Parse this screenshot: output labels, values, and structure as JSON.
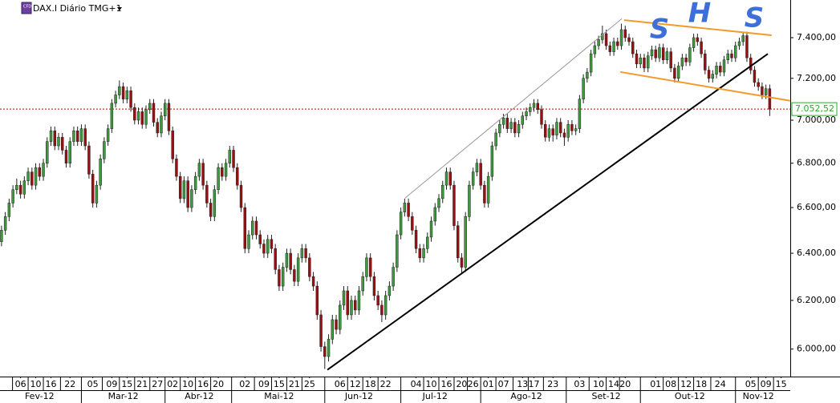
{
  "chart_data": {
    "type": "candlestick",
    "title": "DAX.I Diário TMG+1",
    "log_scale": true,
    "grid": false,
    "up_color": "#3c9c3c",
    "down_color": "#9a1010",
    "ylim": [
      5890,
      7590
    ],
    "yticks": [
      {
        "value": 6000,
        "label": "6.000,00"
      },
      {
        "value": 6200,
        "label": "6.200,00"
      },
      {
        "value": 6400,
        "label": "6.400,00"
      },
      {
        "value": 6600,
        "label": "6.600,00"
      },
      {
        "value": 6800,
        "label": "6.800,00"
      },
      {
        "value": 7000,
        "label": "7.000,00"
      },
      {
        "value": 7200,
        "label": "7.200,00"
      },
      {
        "value": 7400,
        "label": "7.400,00"
      }
    ],
    "xlim": [
      -0.4,
      207.4
    ],
    "xticks": [
      {
        "value": 5,
        "label": "06"
      },
      {
        "value": 9,
        "label": "10"
      },
      {
        "value": 13,
        "label": "16"
      },
      {
        "value": 18,
        "label": "22"
      },
      {
        "value": 24,
        "label": "05"
      },
      {
        "value": 29,
        "label": "09"
      },
      {
        "value": 33,
        "label": "15"
      },
      {
        "value": 37,
        "label": "21"
      },
      {
        "value": 41,
        "label": "27"
      },
      {
        "value": 45,
        "label": "02"
      },
      {
        "value": 49,
        "label": "10"
      },
      {
        "value": 53,
        "label": "16"
      },
      {
        "value": 57,
        "label": "20"
      },
      {
        "value": 64,
        "label": "02"
      },
      {
        "value": 69,
        "label": "09"
      },
      {
        "value": 73,
        "label": "15"
      },
      {
        "value": 77,
        "label": "21"
      },
      {
        "value": 81,
        "label": "25"
      },
      {
        "value": 89,
        "label": "06"
      },
      {
        "value": 93,
        "label": "12"
      },
      {
        "value": 97,
        "label": "18"
      },
      {
        "value": 101,
        "label": "22"
      },
      {
        "value": 109,
        "label": "04"
      },
      {
        "value": 113,
        "label": "10"
      },
      {
        "value": 117,
        "label": "16"
      },
      {
        "value": 121,
        "label": "20"
      },
      {
        "value": 124,
        "label": "26"
      },
      {
        "value": 128,
        "label": "01"
      },
      {
        "value": 132,
        "label": "07"
      },
      {
        "value": 137,
        "label": "13"
      },
      {
        "value": 140,
        "label": "17"
      },
      {
        "value": 145,
        "label": "23"
      },
      {
        "value": 152,
        "label": "03"
      },
      {
        "value": 157,
        "label": "10"
      },
      {
        "value": 161,
        "label": "14"
      },
      {
        "value": 164,
        "label": "20"
      },
      {
        "value": 172,
        "label": "01"
      },
      {
        "value": 176,
        "label": "08"
      },
      {
        "value": 180,
        "label": "12"
      },
      {
        "value": 184,
        "label": "18"
      },
      {
        "value": 189,
        "label": "24"
      },
      {
        "value": 197,
        "label": "05"
      },
      {
        "value": 201,
        "label": "09"
      },
      {
        "value": 205,
        "label": "15"
      }
    ],
    "month_ticks": [
      {
        "value": 10,
        "label": "Fev-12"
      },
      {
        "value": 32,
        "label": "Mar-12"
      },
      {
        "value": 52,
        "label": "Abr-12"
      },
      {
        "value": 73,
        "label": "Mai-12"
      },
      {
        "value": 94,
        "label": "Jun-12"
      },
      {
        "value": 114,
        "label": "Jul-12"
      },
      {
        "value": 138,
        "label": "Ago-12"
      },
      {
        "value": 159,
        "label": "Set-12"
      },
      {
        "value": 181,
        "label": "Out-12"
      },
      {
        "value": 199,
        "label": "Nov-12"
      }
    ],
    "last_price": {
      "value": 7052.52,
      "label": "7.052,52",
      "color": "#2fa82f",
      "line_color": "#c0392b"
    },
    "trendlines": [
      {
        "from": [
          85.7,
          5917
        ],
        "to": [
          201.5,
          7320
        ],
        "color": "#000000"
      },
      {
        "from": [
          106.1,
          6642
        ],
        "to": [
          163.1,
          7495
        ],
        "color": "#999999"
      },
      {
        "from": [
          163.7,
          7488
        ],
        "to": [
          202.5,
          7412
        ],
        "color": "#f39a2b"
      },
      {
        "from": [
          162.7,
          7231
        ],
        "to": [
          207.4,
          7092
        ],
        "color": "#f39a2b"
      }
    ],
    "annotations": [
      "S",
      "H",
      "S"
    ],
    "ohlc": [
      [
        6450,
        6520,
        6430,
        6500
      ],
      [
        6500,
        6580,
        6480,
        6560
      ],
      [
        6560,
        6640,
        6540,
        6620
      ],
      [
        6620,
        6700,
        6600,
        6680
      ],
      [
        6680,
        6730,
        6660,
        6700
      ],
      [
        6700,
        6720,
        6640,
        6660
      ],
      [
        6660,
        6740,
        6640,
        6720
      ],
      [
        6720,
        6780,
        6700,
        6760
      ],
      [
        6760,
        6780,
        6680,
        6700
      ],
      [
        6700,
        6800,
        6680,
        6780
      ],
      [
        6780,
        6800,
        6720,
        6740
      ],
      [
        6740,
        6820,
        6720,
        6800
      ],
      [
        6800,
        6920,
        6780,
        6900
      ],
      [
        6900,
        6970,
        6880,
        6950
      ],
      [
        6950,
        6970,
        6860,
        6880
      ],
      [
        6880,
        6940,
        6860,
        6920
      ],
      [
        6920,
        6940,
        6840,
        6860
      ],
      [
        6860,
        6880,
        6780,
        6800
      ],
      [
        6800,
        6920,
        6780,
        6900
      ],
      [
        6900,
        6970,
        6880,
        6950
      ],
      [
        6950,
        6970,
        6880,
        6900
      ],
      [
        6900,
        6980,
        6880,
        6960
      ],
      [
        6960,
        6980,
        6860,
        6880
      ],
      [
        6880,
        6900,
        6730,
        6750
      ],
      [
        6750,
        6770,
        6600,
        6620
      ],
      [
        6620,
        6720,
        6600,
        6700
      ],
      [
        6700,
        6840,
        6680,
        6820
      ],
      [
        6820,
        6920,
        6800,
        6900
      ],
      [
        6900,
        6980,
        6880,
        6960
      ],
      [
        6960,
        7100,
        6940,
        7080
      ],
      [
        7080,
        7140,
        7060,
        7120
      ],
      [
        7120,
        7190,
        7100,
        7160
      ],
      [
        7160,
        7180,
        7080,
        7100
      ],
      [
        7100,
        7160,
        7080,
        7140
      ],
      [
        7140,
        7160,
        7040,
        7060
      ],
      [
        7060,
        7080,
        6980,
        7000
      ],
      [
        7000,
        7060,
        6980,
        7040
      ],
      [
        7040,
        7060,
        6960,
        6980
      ],
      [
        6980,
        7070,
        6960,
        7050
      ],
      [
        7050,
        7100,
        7030,
        7080
      ],
      [
        7080,
        7100,
        6970,
        6990
      ],
      [
        6990,
        7010,
        6920,
        6940
      ],
      [
        6940,
        7040,
        6920,
        7020
      ],
      [
        7020,
        7100,
        7000,
        7080
      ],
      [
        7080,
        7100,
        6930,
        6950
      ],
      [
        6950,
        6970,
        6800,
        6820
      ],
      [
        6820,
        6840,
        6720,
        6740
      ],
      [
        6740,
        6760,
        6620,
        6640
      ],
      [
        6640,
        6740,
        6620,
        6720
      ],
      [
        6720,
        6740,
        6580,
        6600
      ],
      [
        6600,
        6700,
        6580,
        6680
      ],
      [
        6680,
        6760,
        6660,
        6740
      ],
      [
        6740,
        6820,
        6720,
        6800
      ],
      [
        6800,
        6820,
        6680,
        6700
      ],
      [
        6700,
        6720,
        6600,
        6620
      ],
      [
        6620,
        6640,
        6540,
        6560
      ],
      [
        6560,
        6700,
        6540,
        6680
      ],
      [
        6680,
        6800,
        6660,
        6780
      ],
      [
        6780,
        6800,
        6720,
        6740
      ],
      [
        6740,
        6820,
        6720,
        6800
      ],
      [
        6800,
        6880,
        6780,
        6860
      ],
      [
        6860,
        6880,
        6760,
        6780
      ],
      [
        6780,
        6800,
        6680,
        6700
      ],
      [
        6700,
        6720,
        6580,
        6600
      ],
      [
        6600,
        6620,
        6400,
        6420
      ],
      [
        6420,
        6500,
        6400,
        6480
      ],
      [
        6480,
        6560,
        6460,
        6540
      ],
      [
        6540,
        6560,
        6460,
        6480
      ],
      [
        6480,
        6500,
        6420,
        6440
      ],
      [
        6440,
        6460,
        6380,
        6400
      ],
      [
        6400,
        6480,
        6380,
        6460
      ],
      [
        6460,
        6480,
        6400,
        6420
      ],
      [
        6420,
        6440,
        6310,
        6330
      ],
      [
        6330,
        6350,
        6240,
        6260
      ],
      [
        6260,
        6360,
        6240,
        6340
      ],
      [
        6340,
        6420,
        6320,
        6400
      ],
      [
        6400,
        6420,
        6310,
        6330
      ],
      [
        6330,
        6350,
        6260,
        6280
      ],
      [
        6280,
        6400,
        6260,
        6380
      ],
      [
        6380,
        6440,
        6360,
        6420
      ],
      [
        6420,
        6440,
        6360,
        6380
      ],
      [
        6380,
        6400,
        6280,
        6300
      ],
      [
        6300,
        6320,
        6240,
        6260
      ],
      [
        6260,
        6280,
        6120,
        6140
      ],
      [
        6140,
        6160,
        5990,
        6010
      ],
      [
        6010,
        6030,
        5920,
        5970
      ],
      [
        5970,
        6060,
        5950,
        6040
      ],
      [
        6040,
        6140,
        6020,
        6120
      ],
      [
        6120,
        6140,
        6060,
        6080
      ],
      [
        6080,
        6200,
        6060,
        6180
      ],
      [
        6180,
        6260,
        6160,
        6240
      ],
      [
        6240,
        6260,
        6120,
        6140
      ],
      [
        6140,
        6220,
        6120,
        6200
      ],
      [
        6200,
        6220,
        6140,
        6160
      ],
      [
        6160,
        6260,
        6140,
        6240
      ],
      [
        6240,
        6320,
        6220,
        6300
      ],
      [
        6300,
        6400,
        6280,
        6380
      ],
      [
        6380,
        6400,
        6280,
        6300
      ],
      [
        6300,
        6320,
        6200,
        6220
      ],
      [
        6220,
        6240,
        6160,
        6180
      ],
      [
        6180,
        6200,
        6110,
        6140
      ],
      [
        6140,
        6240,
        6120,
        6220
      ],
      [
        6220,
        6280,
        6200,
        6260
      ],
      [
        6260,
        6360,
        6240,
        6340
      ],
      [
        6340,
        6500,
        6320,
        6480
      ],
      [
        6480,
        6600,
        6460,
        6580
      ],
      [
        6580,
        6640,
        6560,
        6620
      ],
      [
        6620,
        6640,
        6540,
        6560
      ],
      [
        6560,
        6580,
        6480,
        6500
      ],
      [
        6500,
        6520,
        6400,
        6420
      ],
      [
        6420,
        6440,
        6360,
        6380
      ],
      [
        6380,
        6440,
        6360,
        6420
      ],
      [
        6420,
        6490,
        6400,
        6470
      ],
      [
        6470,
        6560,
        6450,
        6540
      ],
      [
        6540,
        6620,
        6520,
        6600
      ],
      [
        6600,
        6660,
        6580,
        6640
      ],
      [
        6640,
        6720,
        6620,
        6700
      ],
      [
        6700,
        6780,
        6680,
        6760
      ],
      [
        6760,
        6780,
        6680,
        6700
      ],
      [
        6700,
        6720,
        6500,
        6520
      ],
      [
        6520,
        6540,
        6360,
        6380
      ],
      [
        6380,
        6400,
        6310,
        6340
      ],
      [
        6340,
        6580,
        6320,
        6560
      ],
      [
        6560,
        6720,
        6540,
        6700
      ],
      [
        6700,
        6780,
        6680,
        6760
      ],
      [
        6760,
        6820,
        6740,
        6800
      ],
      [
        6800,
        6820,
        6680,
        6700
      ],
      [
        6700,
        6720,
        6600,
        6620
      ],
      [
        6620,
        6760,
        6600,
        6740
      ],
      [
        6740,
        6900,
        6720,
        6880
      ],
      [
        6880,
        6960,
        6860,
        6940
      ],
      [
        6940,
        7000,
        6920,
        6980
      ],
      [
        6980,
        7030,
        6960,
        7010
      ],
      [
        7010,
        7030,
        6940,
        6960
      ],
      [
        6960,
        7010,
        6940,
        6990
      ],
      [
        6990,
        7010,
        6920,
        6940
      ],
      [
        6940,
        7000,
        6920,
        6980
      ],
      [
        6980,
        7040,
        6960,
        7020
      ],
      [
        7020,
        7060,
        7000,
        7040
      ],
      [
        7040,
        7080,
        7020,
        7060
      ],
      [
        7060,
        7100,
        7040,
        7080
      ],
      [
        7080,
        7100,
        7030,
        7050
      ],
      [
        7050,
        7070,
        6960,
        6980
      ],
      [
        6980,
        7000,
        6900,
        6920
      ],
      [
        6920,
        6980,
        6900,
        6960
      ],
      [
        6960,
        6980,
        6900,
        6930
      ],
      [
        6930,
        7010,
        6910,
        6990
      ],
      [
        6990,
        7010,
        6920,
        6940
      ],
      [
        6940,
        6960,
        6880,
        6920
      ],
      [
        6920,
        7000,
        6900,
        6980
      ],
      [
        6980,
        7000,
        6930,
        6950
      ],
      [
        6950,
        6980,
        6930,
        6960
      ],
      [
        6960,
        7120,
        6940,
        7100
      ],
      [
        7100,
        7220,
        7080,
        7200
      ],
      [
        7200,
        7250,
        7180,
        7230
      ],
      [
        7230,
        7340,
        7210,
        7320
      ],
      [
        7320,
        7380,
        7300,
        7360
      ],
      [
        7360,
        7410,
        7340,
        7390
      ],
      [
        7390,
        7460,
        7370,
        7420
      ],
      [
        7420,
        7440,
        7340,
        7360
      ],
      [
        7360,
        7380,
        7310,
        7330
      ],
      [
        7330,
        7400,
        7310,
        7380
      ],
      [
        7380,
        7400,
        7340,
        7360
      ],
      [
        7360,
        7470,
        7340,
        7440
      ],
      [
        7440,
        7460,
        7380,
        7400
      ],
      [
        7400,
        7420,
        7360,
        7380
      ],
      [
        7380,
        7400,
        7300,
        7320
      ],
      [
        7320,
        7340,
        7250,
        7270
      ],
      [
        7270,
        7320,
        7250,
        7300
      ],
      [
        7300,
        7320,
        7230,
        7250
      ],
      [
        7250,
        7330,
        7230,
        7310
      ],
      [
        7310,
        7360,
        7290,
        7340
      ],
      [
        7340,
        7360,
        7280,
        7300
      ],
      [
        7300,
        7370,
        7280,
        7350
      ],
      [
        7350,
        7370,
        7270,
        7290
      ],
      [
        7290,
        7350,
        7270,
        7330
      ],
      [
        7330,
        7350,
        7230,
        7250
      ],
      [
        7250,
        7270,
        7180,
        7200
      ],
      [
        7200,
        7280,
        7180,
        7260
      ],
      [
        7260,
        7320,
        7240,
        7300
      ],
      [
        7300,
        7320,
        7260,
        7280
      ],
      [
        7280,
        7370,
        7260,
        7350
      ],
      [
        7350,
        7420,
        7330,
        7400
      ],
      [
        7400,
        7420,
        7360,
        7380
      ],
      [
        7380,
        7400,
        7300,
        7320
      ],
      [
        7320,
        7340,
        7220,
        7240
      ],
      [
        7240,
        7260,
        7180,
        7200
      ],
      [
        7200,
        7240,
        7180,
        7220
      ],
      [
        7220,
        7280,
        7200,
        7260
      ],
      [
        7260,
        7280,
        7210,
        7230
      ],
      [
        7230,
        7310,
        7210,
        7290
      ],
      [
        7290,
        7340,
        7270,
        7320
      ],
      [
        7320,
        7340,
        7280,
        7300
      ],
      [
        7300,
        7380,
        7280,
        7360
      ],
      [
        7360,
        7400,
        7340,
        7380
      ],
      [
        7380,
        7430,
        7360,
        7410
      ],
      [
        7410,
        7430,
        7280,
        7300
      ],
      [
        7300,
        7320,
        7220,
        7240
      ],
      [
        7240,
        7260,
        7160,
        7180
      ],
      [
        7180,
        7200,
        7140,
        7160
      ],
      [
        7160,
        7180,
        7100,
        7120
      ],
      [
        7120,
        7170,
        7100,
        7150
      ],
      [
        7150,
        7170,
        7020,
        7052.52
      ]
    ]
  }
}
